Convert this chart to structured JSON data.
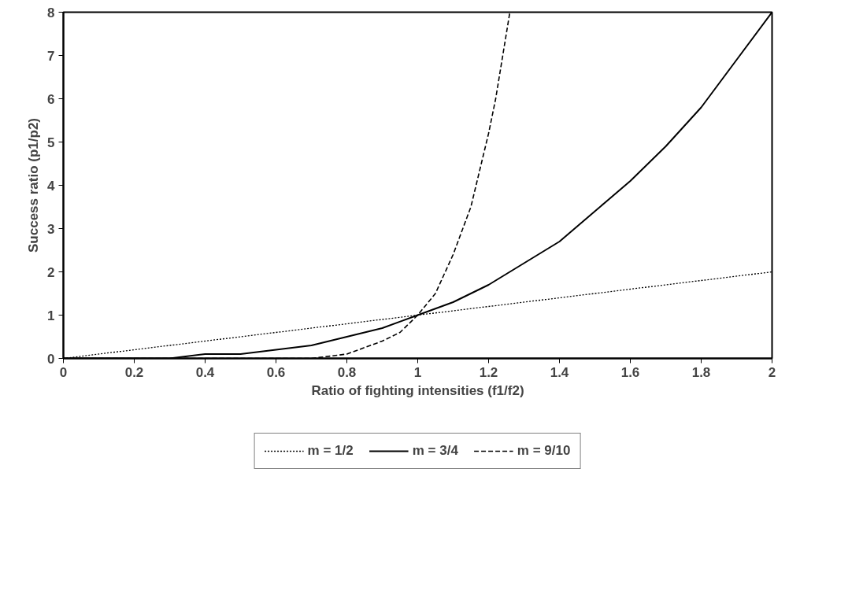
{
  "chart_data": {
    "type": "line",
    "xlabel": "Ratio of fighting intensities (f1/f2)",
    "ylabel": "Success ratio (p1/p2)",
    "xlim": [
      0,
      2
    ],
    "ylim": [
      0,
      8
    ],
    "xticks": [
      0,
      0.2,
      0.4,
      0.6,
      0.8,
      1,
      1.2,
      1.4,
      1.6,
      1.8,
      2
    ],
    "yticks": [
      0,
      1,
      2,
      3,
      4,
      5,
      6,
      7,
      8
    ],
    "grid": false,
    "legend": "bottom",
    "marker": "none",
    "series": [
      {
        "name": "m = 1/2",
        "color": "#000000",
        "line_style": "dotted",
        "x": [
          0,
          0.2,
          0.4,
          0.6,
          0.8,
          1,
          1.2,
          1.4,
          1.6,
          1.8,
          2
        ],
        "values": [
          0,
          0.2,
          0.4,
          0.6,
          0.8,
          1,
          1.2,
          1.4,
          1.6,
          1.8,
          2
        ]
      },
      {
        "name": "m = 3/4",
        "color": "#000000",
        "line_style": "solid",
        "x": [
          0,
          0.2,
          0.3,
          0.4,
          0.5,
          0.6,
          0.7,
          0.8,
          0.9,
          1,
          1.1,
          1.2,
          1.3,
          1.4,
          1.5,
          1.6,
          1.7,
          1.8,
          1.9,
          2
        ],
        "values": [
          0,
          0,
          0,
          0.1,
          0.1,
          0.2,
          0.3,
          0.5,
          0.7,
          1,
          1.3,
          1.7,
          2.2,
          2.7,
          3.4,
          4.1,
          4.9,
          5.8,
          6.9,
          8
        ]
      },
      {
        "name": "m = 9/10",
        "color": "#000000",
        "line_style": "dashed",
        "x": [
          0,
          0.2,
          0.4,
          0.6,
          0.7,
          0.8,
          0.9,
          0.95,
          1,
          1.05,
          1.1,
          1.15,
          1.2,
          1.22,
          1.25,
          1.26
        ],
        "values": [
          0,
          0,
          0,
          0,
          0,
          0.1,
          0.4,
          0.6,
          1,
          1.5,
          2.4,
          3.5,
          5.2,
          6,
          7.5,
          8
        ]
      }
    ]
  }
}
